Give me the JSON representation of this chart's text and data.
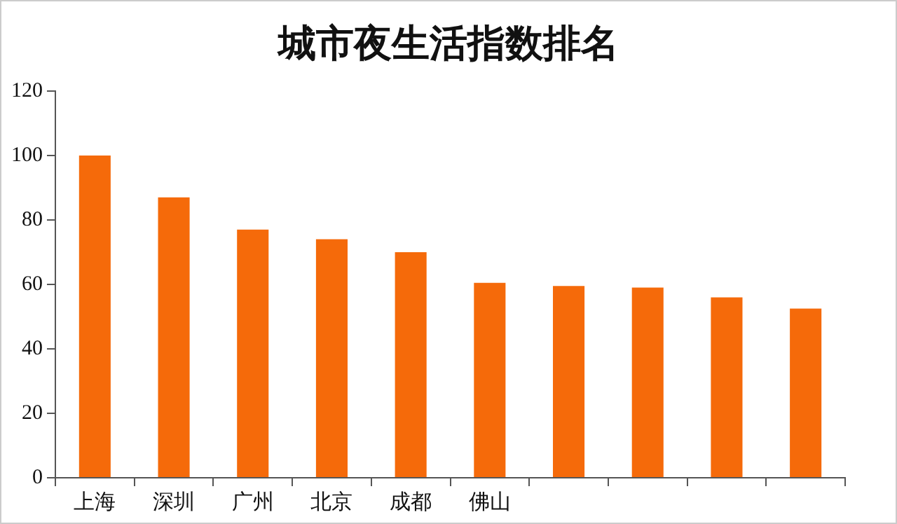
{
  "chart_data": {
    "type": "bar",
    "title": "城市夜生活指数排名",
    "categories": [
      "上海",
      "深圳",
      "广州",
      "北京",
      "成都",
      "佛山",
      null,
      null,
      null,
      null
    ],
    "values": [
      100,
      87,
      77,
      74,
      70,
      60.5,
      59.5,
      59,
      56,
      52.5
    ],
    "color": "#f56a0a",
    "ylim": [
      0,
      120
    ],
    "yticks": [
      0,
      20,
      40,
      60,
      80,
      100,
      120
    ],
    "grid": false,
    "legend": false
  }
}
